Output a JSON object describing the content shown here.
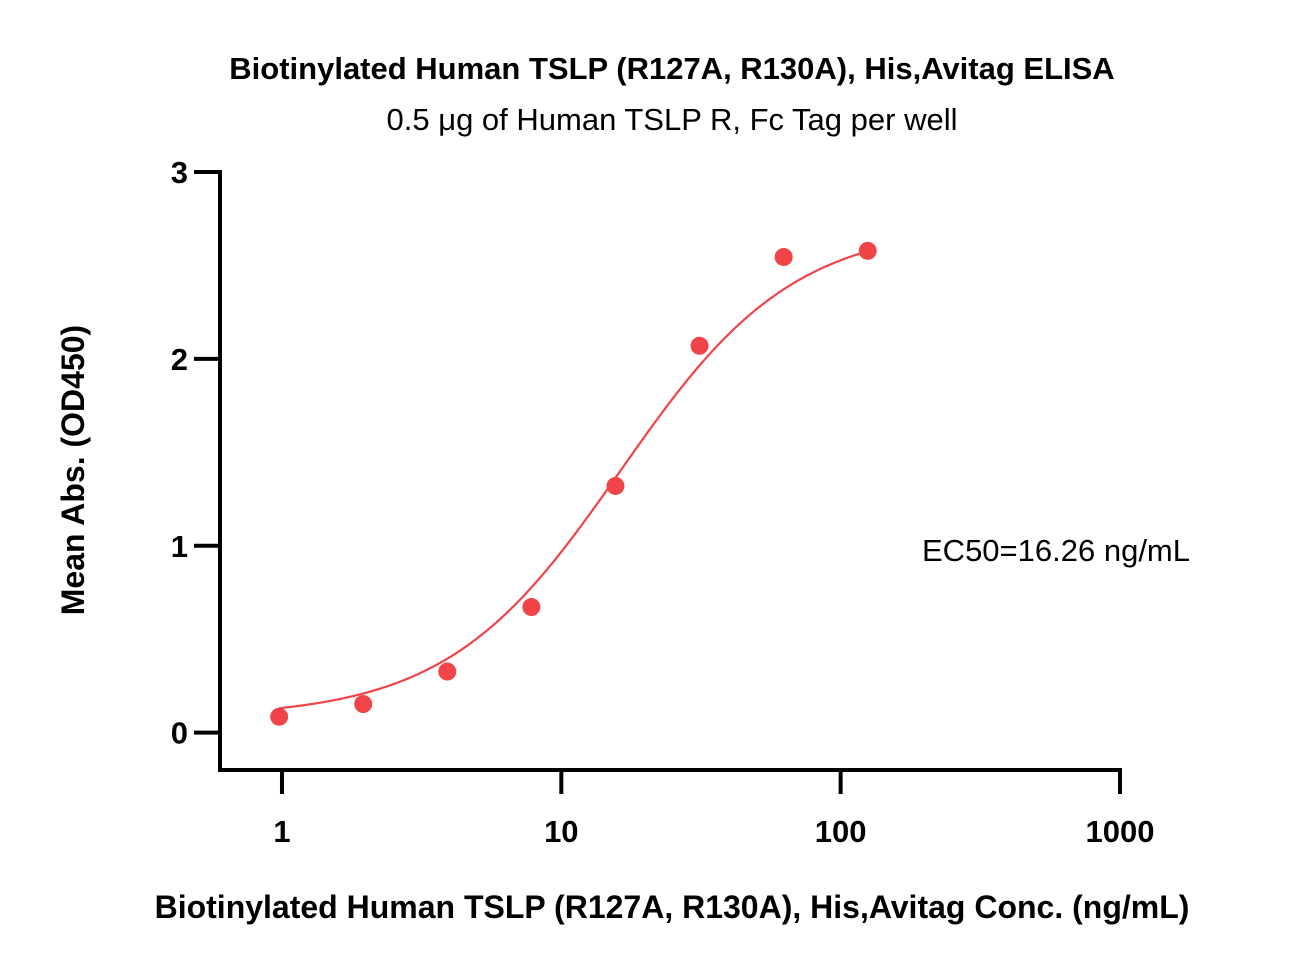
{
  "chart_data": {
    "type": "scatter",
    "title": "Biotinylated Human TSLP (R127A, R130A), His,Avitag ELISA",
    "subtitle": "0.5 μg of Human TSLP R, Fc Tag per well",
    "xlabel": "Biotinylated Human TSLP (R127A, R130A), His,Avitag Conc. (ng/mL)",
    "ylabel": "Mean Abs. (OD450)",
    "x_scale": "log",
    "xlim": [
      0.6,
      1000
    ],
    "ylim": [
      -0.2,
      3
    ],
    "x_ticks": [
      1,
      10,
      100,
      1000
    ],
    "x_tick_labels": [
      "1",
      "10",
      "100",
      "1000"
    ],
    "y_ticks": [
      0,
      1,
      2,
      3
    ],
    "y_tick_labels": [
      "0",
      "1",
      "2",
      "3"
    ],
    "grid": false,
    "series": [
      {
        "color": "#f04448",
        "x": [
          0.977,
          1.953,
          3.906,
          7.813,
          15.625,
          31.25,
          62.5,
          125
        ],
        "y": [
          0.085,
          0.153,
          0.327,
          0.672,
          1.32,
          2.07,
          2.545,
          2.578
        ],
        "fit": {
          "model": "4PL",
          "bottom": 0.08,
          "top": 2.72,
          "ec50": 16.26,
          "hill": 1.4,
          "x_range": [
            0.977,
            125
          ]
        }
      }
    ],
    "annotations": [
      {
        "text": "EC50=16.26 ng/mL"
      }
    ]
  }
}
